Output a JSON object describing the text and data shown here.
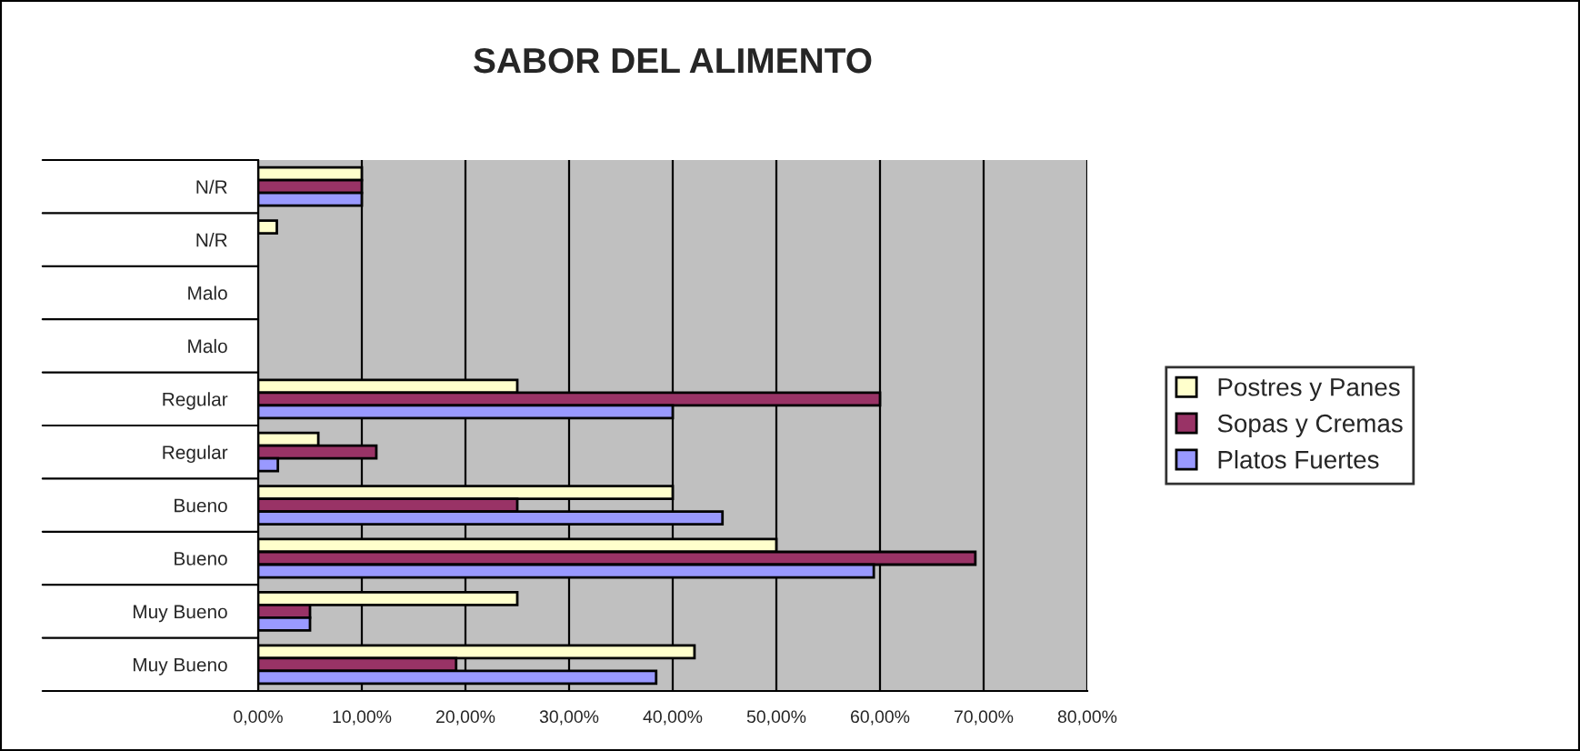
{
  "chart_data": {
    "type": "bar",
    "orientation": "horizontal",
    "title": "SABOR DEL ALIMENTO",
    "categories": [
      "N/R",
      "N/R",
      "Malo",
      "Malo",
      "Regular",
      "Regular",
      "Bueno",
      "Bueno",
      "Muy Bueno",
      "Muy Bueno"
    ],
    "series": [
      {
        "name": "Postres y Panes",
        "color": "#ffffcc",
        "values": [
          10,
          1.8,
          null,
          null,
          25,
          5.8,
          40,
          50,
          25,
          42.1
        ]
      },
      {
        "name": "Sopas y Cremas",
        "color": "#993366",
        "values": [
          10,
          null,
          null,
          null,
          60,
          11.4,
          25,
          69.2,
          5,
          19.1
        ]
      },
      {
        "name": "Platos Fuertes",
        "color": "#9999ff",
        "values": [
          10,
          null,
          null,
          null,
          40,
          1.9,
          44.8,
          59.4,
          5,
          38.4
        ]
      }
    ],
    "xlim": [
      0,
      80
    ],
    "xticks": [
      {
        "value": 0,
        "label": "0,00%"
      },
      {
        "value": 10,
        "label": "10,00%"
      },
      {
        "value": 20,
        "label": "20,00%"
      },
      {
        "value": 30,
        "label": "30,00%"
      },
      {
        "value": 40,
        "label": "40,00%"
      },
      {
        "value": 50,
        "label": "50,00%"
      },
      {
        "value": 60,
        "label": "60,00%"
      },
      {
        "value": 70,
        "label": "70,00%"
      },
      {
        "value": 80,
        "label": "80,00%"
      }
    ],
    "grid": "x",
    "legend": "right"
  }
}
